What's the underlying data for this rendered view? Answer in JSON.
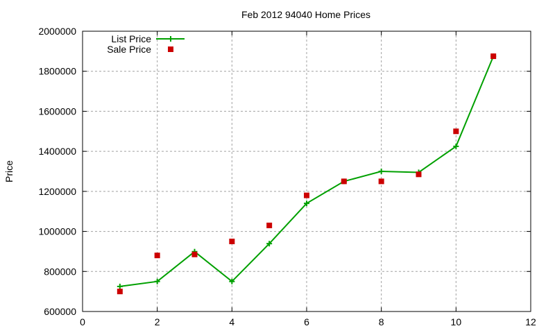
{
  "chart_data": {
    "type": "line",
    "title": "Feb 2012 94040 Home Prices",
    "xlabel": "",
    "ylabel": "Price",
    "xlim": [
      0,
      12
    ],
    "ylim": [
      600000,
      2000000
    ],
    "x_ticks": [
      0,
      2,
      4,
      6,
      8,
      10,
      12
    ],
    "y_ticks": [
      600000,
      800000,
      1000000,
      1200000,
      1400000,
      1600000,
      1800000,
      2000000
    ],
    "grid": true,
    "legend_position": "top-left",
    "x": [
      1,
      2,
      3,
      4,
      5,
      6,
      7,
      8,
      9,
      10,
      11
    ],
    "series": [
      {
        "name": "List Price",
        "style": "linespoints",
        "marker": "plus",
        "color": "#00a000",
        "values": [
          725000,
          750000,
          899000,
          750000,
          939000,
          1140000,
          1250000,
          1300000,
          1295000,
          1425000,
          1875000
        ]
      },
      {
        "name": "Sale Price",
        "style": "points",
        "marker": "square",
        "color": "#cc0000",
        "values": [
          700000,
          880000,
          885000,
          950000,
          1030000,
          1180000,
          1250000,
          1250000,
          1285000,
          1500000,
          1875000
        ]
      }
    ]
  }
}
